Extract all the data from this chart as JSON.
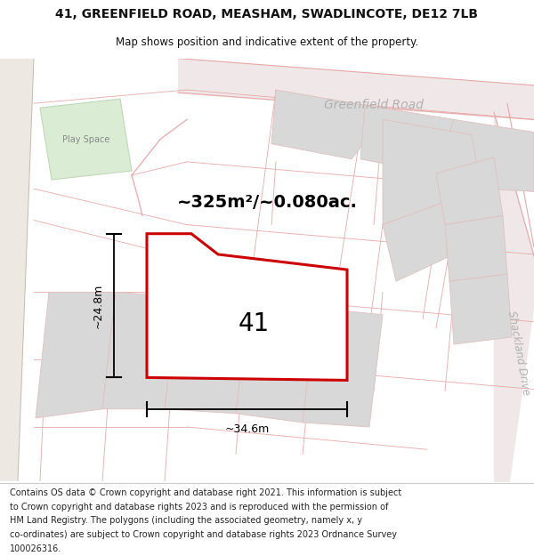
{
  "title_line1": "41, GREENFIELD ROAD, MEASHAM, SWADLINCOTE, DE12 7LB",
  "title_line2": "Map shows position and indicative extent of the property.",
  "footer_lines": [
    "Contains OS data © Crown copyright and database right 2021. This information is subject",
    "to Crown copyright and database rights 2023 and is reproduced with the permission of",
    "HM Land Registry. The polygons (including the associated geometry, namely x, y",
    "co-ordinates) are subject to Crown copyright and database rights 2023 Ordnance Survey",
    "100026316."
  ],
  "area_label": "~325m²/~0.080ac.",
  "width_label": "~34.6m",
  "height_label": "~24.8m",
  "plot_number": "41",
  "map_bg": "#faf7f7",
  "plot_fill": "#ffffff",
  "plot_edge": "#cc0000",
  "road_color": "#e8a8a8",
  "road_label_color": "#b0b0b0",
  "green_fill": "#daecd4",
  "gray_fill": "#d8d8d8",
  "gray_edge": "#e0c0c0",
  "beige_left": "#ede8e2",
  "title_fontsize": 10,
  "subtitle_fontsize": 8.5,
  "area_fontsize": 14,
  "meas_fontsize": 9,
  "plot_num_fontsize": 20,
  "road_label_fontsize": 10,
  "footer_fontsize": 7
}
